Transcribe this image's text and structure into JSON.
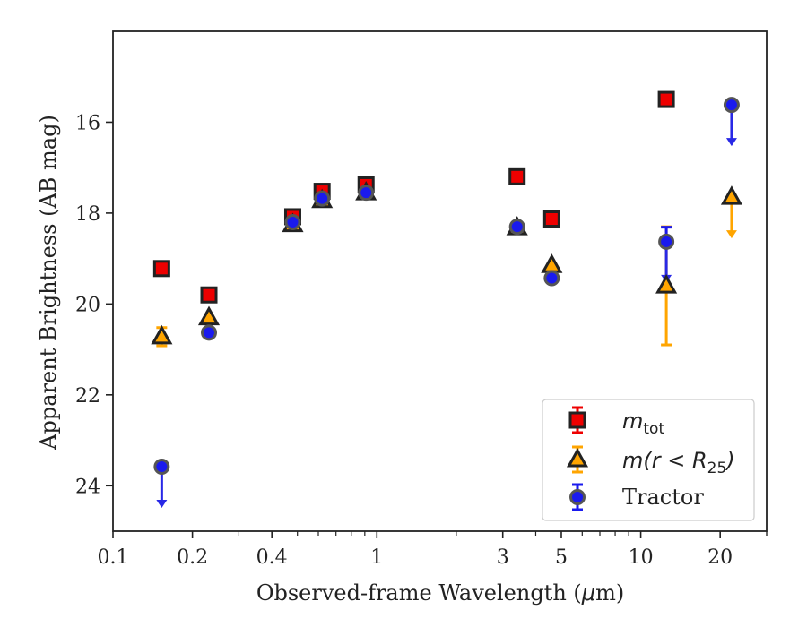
{
  "chart_data": {
    "type": "scatter",
    "title": "",
    "xlabel_pre": "Observed-frame Wavelength (",
    "xlabel_mu": "μ",
    "xlabel_post": "m)",
    "ylabel": "Apparent Brightness (AB mag)",
    "x_scale": "log",
    "y_inverted": true,
    "xlim": [
      0.1,
      30
    ],
    "ylim": [
      25,
      14
    ],
    "x_ticks": [
      0.1,
      0.2,
      0.4,
      1,
      3,
      5,
      10,
      20
    ],
    "x_tick_labels": [
      "0.1",
      "0.2",
      "0.4",
      "1",
      "3",
      "5",
      "10",
      "20"
    ],
    "y_ticks": [
      16,
      18,
      20,
      22,
      24
    ],
    "y_tick_labels": [
      "16",
      "18",
      "20",
      "22",
      "24"
    ],
    "grid": false,
    "legend_position": "bottom-right",
    "legend": {
      "mtot_label": "m",
      "mtot_sub": "tot",
      "mr25_label": "m(r < R",
      "mr25_sub": "25",
      "mr25_close": ")",
      "tractor_label": "Tractor"
    },
    "colors": {
      "mtot": "#ee0000",
      "mr25": "#ffa500",
      "tractor": "#1a1aee",
      "tractor_arrow": "#2828e6",
      "edge": "#222222"
    },
    "series": [
      {
        "key": "mtot",
        "marker": "square",
        "points": [
          {
            "x": 0.153,
            "y": 19.22
          },
          {
            "x": 0.231,
            "y": 19.8
          },
          {
            "x": 0.48,
            "y": 18.08
          },
          {
            "x": 0.62,
            "y": 17.52
          },
          {
            "x": 0.91,
            "y": 17.38
          },
          {
            "x": 3.4,
            "y": 17.2
          },
          {
            "x": 4.6,
            "y": 18.13
          },
          {
            "x": 12.5,
            "y": 15.5
          }
        ]
      },
      {
        "key": "mr25",
        "marker": "triangle",
        "points": [
          {
            "x": 0.153,
            "y": 20.72,
            "err": 0.2
          },
          {
            "x": 0.231,
            "y": 20.3
          },
          {
            "x": 0.48,
            "y": 18.25
          },
          {
            "x": 0.62,
            "y": 17.72
          },
          {
            "x": 0.91,
            "y": 17.55
          },
          {
            "x": 3.4,
            "y": 18.32
          },
          {
            "x": 4.6,
            "y": 19.15
          },
          {
            "x": 12.5,
            "y": 19.6,
            "err_low": 1.3,
            "err_high": 1.3
          },
          {
            "x": 22.1,
            "y": 17.65,
            "upper_limit": true
          }
        ]
      },
      {
        "key": "tractor",
        "marker": "circle",
        "points": [
          {
            "x": 0.153,
            "y": 23.58,
            "upper_limit": true
          },
          {
            "x": 0.231,
            "y": 20.63
          },
          {
            "x": 0.48,
            "y": 18.2
          },
          {
            "x": 0.62,
            "y": 17.68
          },
          {
            "x": 0.91,
            "y": 17.55
          },
          {
            "x": 3.4,
            "y": 18.3
          },
          {
            "x": 4.6,
            "y": 19.43
          },
          {
            "x": 12.5,
            "y": 18.63,
            "err_low": 0.32,
            "upper_limit": true
          },
          {
            "x": 22.1,
            "y": 15.62,
            "upper_limit": true
          }
        ]
      }
    ]
  }
}
